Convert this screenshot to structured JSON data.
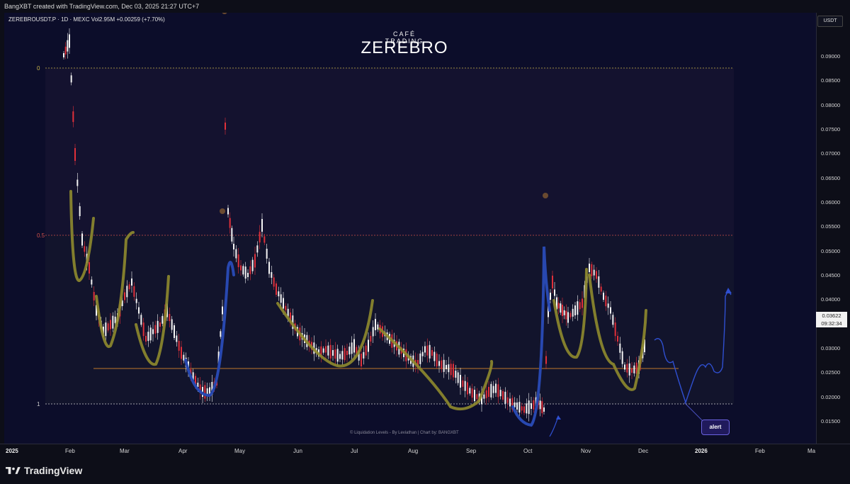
{
  "credit": "BangXBT created with TradingView.com, Dec 03, 2025 21:27 UTC+7",
  "legend": "ZEREBROUSDT.P · 1D · MEXC  Vol2.95M  +0.00259 (+7.70%)",
  "brand": {
    "top": "CAFÉ TRADING",
    "main": "ZEREBRO"
  },
  "fib_levels": [
    {
      "label": "0",
      "color": "#c8b44a"
    },
    {
      "label": "0.5",
      "color": "#d0504a"
    },
    {
      "label": "1",
      "color": "#cfcfcf"
    }
  ],
  "watermark": "© Liquidation Levels - By Leviathan | Chart by: BANGXBT",
  "alert_label": "alert",
  "y_axis": {
    "unit": "USDT",
    "labels": [
      "0.09000",
      "0.08500",
      "0.08000",
      "0.07500",
      "0.07000",
      "0.06500",
      "0.06000",
      "0.05500",
      "0.05000",
      "0.04500",
      "0.04000",
      "0.03000",
      "0.02500",
      "0.02000",
      "0.01500"
    ],
    "current_price": "0.03622",
    "countdown": "09:32:34"
  },
  "x_axis": {
    "labels": [
      "2025",
      "Feb",
      "Mar",
      "Apr",
      "May",
      "Jun",
      "Jul",
      "Aug",
      "Sep",
      "Oct",
      "Nov",
      "Dec",
      "2026",
      "Feb",
      "Ma"
    ]
  },
  "footer": {
    "logo_text": "TradingView"
  },
  "colors": {
    "background": "#0c0d2a",
    "up": "#ffffff",
    "down": "#e0303a",
    "swing": "#9a9a3a",
    "blue_path": "#2a4bb5"
  }
}
